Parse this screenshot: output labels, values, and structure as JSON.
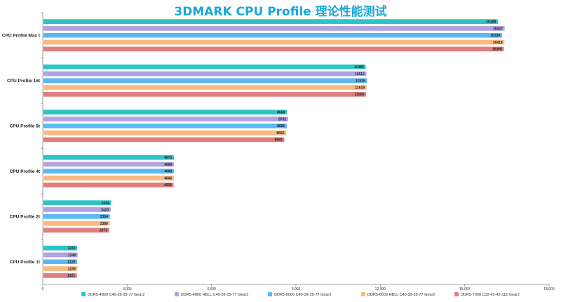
{
  "chart_data": {
    "type": "bar",
    "orientation": "horizontal",
    "title": "3DMARK CPU Profile 理论性能测试",
    "categories": [
      "CPU Profile Max t",
      "CPU Profile 16t",
      "CPU Profile 8t",
      "CPU Profile 4t",
      "CPU Profile 2t",
      "CPU Profile 1t"
    ],
    "series": [
      {
        "name": "DDR5-4800 C40-39-39-77 Gear2",
        "color": "#2ec4c6",
        "values": [
          16188,
          11485,
          8683,
          4671,
          2434,
          1233
        ]
      },
      {
        "name": "DDR5-4800 HBLL C40-39-39-77 Gear2",
        "color": "#b1a2e0",
        "values": [
          16427,
          11512,
          8732,
          4669,
          2423,
          1249
        ]
      },
      {
        "name": "DDR5-6000 C40-39-39-77 Gear2",
        "color": "#5cb8f2",
        "values": [
          16336,
          11536,
          8681,
          4668,
          2394,
          1229
        ]
      },
      {
        "name": "DDR5-6000 HBLL C40-39-39-77 Gear2",
        "color": "#f9b980",
        "values": [
          16419,
          11519,
          8662,
          4666,
          2389,
          1239
        ]
      },
      {
        "name": "DDR5-7000 C32-42-42-112 Gear2",
        "color": "#e07f80",
        "values": [
          16398,
          11500,
          8594,
          4658,
          2372,
          1221
        ]
      }
    ],
    "xlim": [
      0,
      18000
    ],
    "xticks": [
      "0",
      "3,000",
      "6,000",
      "9,000",
      "12,000",
      "15,000",
      "18,000"
    ],
    "grid": false,
    "legend_position": "bottom"
  }
}
